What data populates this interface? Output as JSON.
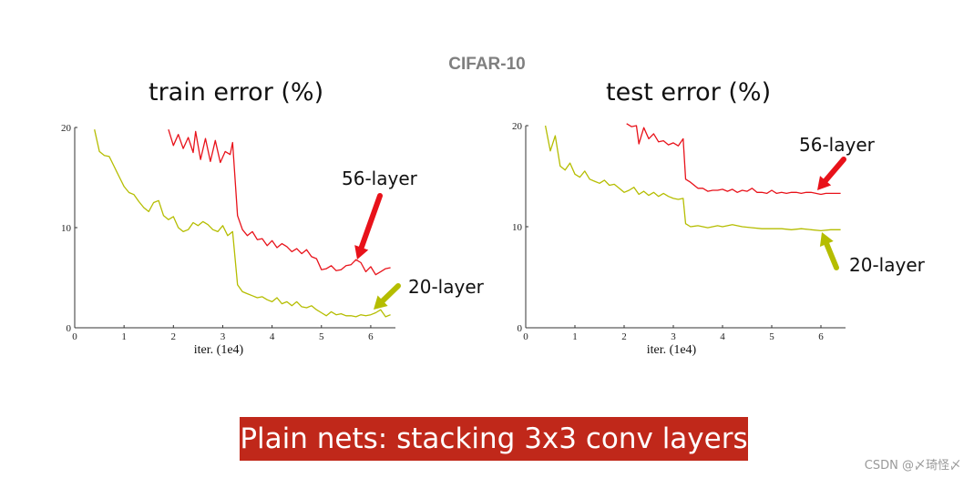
{
  "figure_title": "CIFAR-10",
  "banner": "Plain nets: stacking 3x3 conv layers",
  "watermark": "CSDN @〆琦怪〆",
  "colors": {
    "series_56": "#e8121a",
    "series_20": "#b5bd00",
    "banner_bg": "#c0281a"
  },
  "chart_data": [
    {
      "type": "line",
      "title": "train error (%)",
      "xlabel": "iter. (1e4)",
      "ylabel": "",
      "xlim": [
        0,
        6.5
      ],
      "ylim": [
        0,
        20
      ],
      "xticks": [
        "0",
        "1",
        "2",
        "3",
        "4",
        "5",
        "6"
      ],
      "yticks": [
        "0",
        "10",
        "20"
      ],
      "series": [
        {
          "name": "56-layer",
          "x": [
            1.9,
            2.0,
            2.1,
            2.2,
            2.3,
            2.4,
            2.45,
            2.55,
            2.65,
            2.75,
            2.85,
            2.95,
            3.05,
            3.15,
            3.2,
            3.3,
            3.4,
            3.5,
            3.6,
            3.7,
            3.8,
            3.9,
            4.0,
            4.1,
            4.2,
            4.3,
            4.4,
            4.5,
            4.6,
            4.7,
            4.8,
            4.9,
            5.0,
            5.1,
            5.2,
            5.3,
            5.4,
            5.5,
            5.6,
            5.7,
            5.8,
            5.9,
            6.0,
            6.1,
            6.2,
            6.3,
            6.4
          ],
          "y": [
            19.8,
            18.2,
            19.3,
            17.9,
            19.0,
            17.5,
            19.6,
            16.8,
            18.9,
            16.6,
            18.7,
            16.5,
            17.6,
            17.3,
            18.5,
            11.2,
            9.8,
            9.2,
            9.6,
            8.8,
            8.9,
            8.2,
            8.7,
            8.0,
            8.4,
            8.1,
            7.6,
            7.9,
            7.4,
            7.8,
            7.1,
            6.9,
            5.8,
            5.9,
            6.2,
            5.7,
            5.8,
            6.2,
            6.3,
            6.8,
            6.5,
            5.6,
            6.1,
            5.3,
            5.6,
            5.9,
            6.0
          ]
        },
        {
          "name": "20-layer",
          "x": [
            0.4,
            0.5,
            0.6,
            0.7,
            0.8,
            0.9,
            1.0,
            1.1,
            1.2,
            1.3,
            1.4,
            1.5,
            1.6,
            1.7,
            1.8,
            1.9,
            2.0,
            2.1,
            2.2,
            2.3,
            2.4,
            2.5,
            2.6,
            2.7,
            2.8,
            2.9,
            3.0,
            3.1,
            3.2,
            3.3,
            3.4,
            3.5,
            3.6,
            3.7,
            3.8,
            3.9,
            4.0,
            4.1,
            4.2,
            4.3,
            4.4,
            4.5,
            4.6,
            4.7,
            4.8,
            4.9,
            5.0,
            5.1,
            5.2,
            5.3,
            5.4,
            5.5,
            5.6,
            5.7,
            5.8,
            5.9,
            6.0,
            6.1,
            6.2,
            6.3,
            6.4
          ],
          "y": [
            19.8,
            17.6,
            17.2,
            17.1,
            16.1,
            15.1,
            14.1,
            13.5,
            13.3,
            12.6,
            12.0,
            11.6,
            12.5,
            12.7,
            11.2,
            10.8,
            11.1,
            10.0,
            9.6,
            9.8,
            10.5,
            10.2,
            10.6,
            10.3,
            9.8,
            9.6,
            10.2,
            9.2,
            9.6,
            4.3,
            3.6,
            3.4,
            3.2,
            3.0,
            3.1,
            2.8,
            2.6,
            3.0,
            2.4,
            2.6,
            2.2,
            2.6,
            2.1,
            2.0,
            2.2,
            1.8,
            1.5,
            1.2,
            1.6,
            1.3,
            1.4,
            1.2,
            1.2,
            1.1,
            1.3,
            1.2,
            1.3,
            1.5,
            1.8,
            1.1,
            1.3
          ]
        }
      ],
      "annotations": [
        {
          "text": "56-layer",
          "target": "56-layer",
          "arrow": true
        },
        {
          "text": "20-layer",
          "target": "20-layer",
          "arrow": true
        }
      ]
    },
    {
      "type": "line",
      "title": "test error (%)",
      "xlabel": "iter. (1e4)",
      "ylabel": "",
      "xlim": [
        0,
        6.5
      ],
      "ylim": [
        0,
        20
      ],
      "xticks": [
        "0",
        "1",
        "2",
        "3",
        "4",
        "5",
        "6"
      ],
      "yticks": [
        "0",
        "10",
        "20"
      ],
      "series": [
        {
          "name": "56-layer",
          "x": [
            2.05,
            2.15,
            2.25,
            2.3,
            2.4,
            2.5,
            2.6,
            2.7,
            2.8,
            2.9,
            3.0,
            3.1,
            3.2,
            3.25,
            3.35,
            3.5,
            3.6,
            3.7,
            3.8,
            3.9,
            4.0,
            4.1,
            4.2,
            4.3,
            4.4,
            4.5,
            4.6,
            4.7,
            4.8,
            4.9,
            5.0,
            5.1,
            5.2,
            5.3,
            5.4,
            5.5,
            5.6,
            5.7,
            5.8,
            5.9,
            6.0,
            6.1,
            6.2,
            6.3,
            6.4
          ],
          "y": [
            20.2,
            19.9,
            20.0,
            18.2,
            19.8,
            18.7,
            19.2,
            18.4,
            18.5,
            18.1,
            18.3,
            18.0,
            18.7,
            14.7,
            14.4,
            13.8,
            13.8,
            13.5,
            13.6,
            13.6,
            13.7,
            13.5,
            13.7,
            13.4,
            13.6,
            13.5,
            13.8,
            13.4,
            13.4,
            13.3,
            13.6,
            13.3,
            13.4,
            13.3,
            13.4,
            13.4,
            13.3,
            13.4,
            13.4,
            13.3,
            13.2,
            13.3,
            13.3,
            13.3,
            13.3
          ]
        },
        {
          "name": "20-layer",
          "x": [
            0.4,
            0.5,
            0.6,
            0.7,
            0.8,
            0.9,
            1.0,
            1.1,
            1.2,
            1.3,
            1.4,
            1.5,
            1.6,
            1.7,
            1.8,
            1.9,
            2.0,
            2.1,
            2.2,
            2.3,
            2.4,
            2.5,
            2.6,
            2.7,
            2.8,
            2.9,
            3.0,
            3.1,
            3.2,
            3.25,
            3.35,
            3.5,
            3.6,
            3.7,
            3.8,
            3.9,
            4.0,
            4.2,
            4.4,
            4.6,
            4.8,
            5.0,
            5.2,
            5.4,
            5.6,
            5.8,
            6.0,
            6.2,
            6.4
          ],
          "y": [
            20.0,
            17.5,
            19.0,
            16.0,
            15.6,
            16.3,
            15.2,
            14.9,
            15.5,
            14.7,
            14.5,
            14.3,
            14.6,
            14.1,
            14.2,
            13.8,
            13.4,
            13.6,
            13.9,
            13.2,
            13.5,
            13.1,
            13.4,
            13.0,
            13.3,
            13.0,
            12.8,
            12.7,
            12.8,
            10.3,
            10.0,
            10.1,
            10.0,
            9.9,
            10.0,
            10.1,
            10.0,
            10.2,
            10.0,
            9.9,
            9.8,
            9.8,
            9.8,
            9.7,
            9.8,
            9.7,
            9.6,
            9.7,
            9.7
          ]
        }
      ],
      "annotations": [
        {
          "text": "56-layer",
          "target": "56-layer",
          "arrow": true
        },
        {
          "text": "20-layer",
          "target": "20-layer",
          "arrow": true
        }
      ]
    }
  ]
}
